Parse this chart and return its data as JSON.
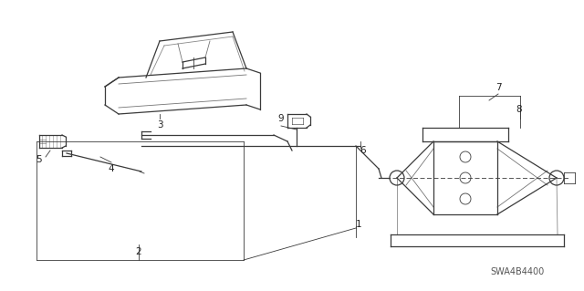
{
  "background_color": "#ffffff",
  "line_color": "#3a3a3a",
  "label_color": "#222222",
  "part_code": "SWA4B4400",
  "figsize": [
    6.4,
    3.19
  ],
  "dpi": 100
}
